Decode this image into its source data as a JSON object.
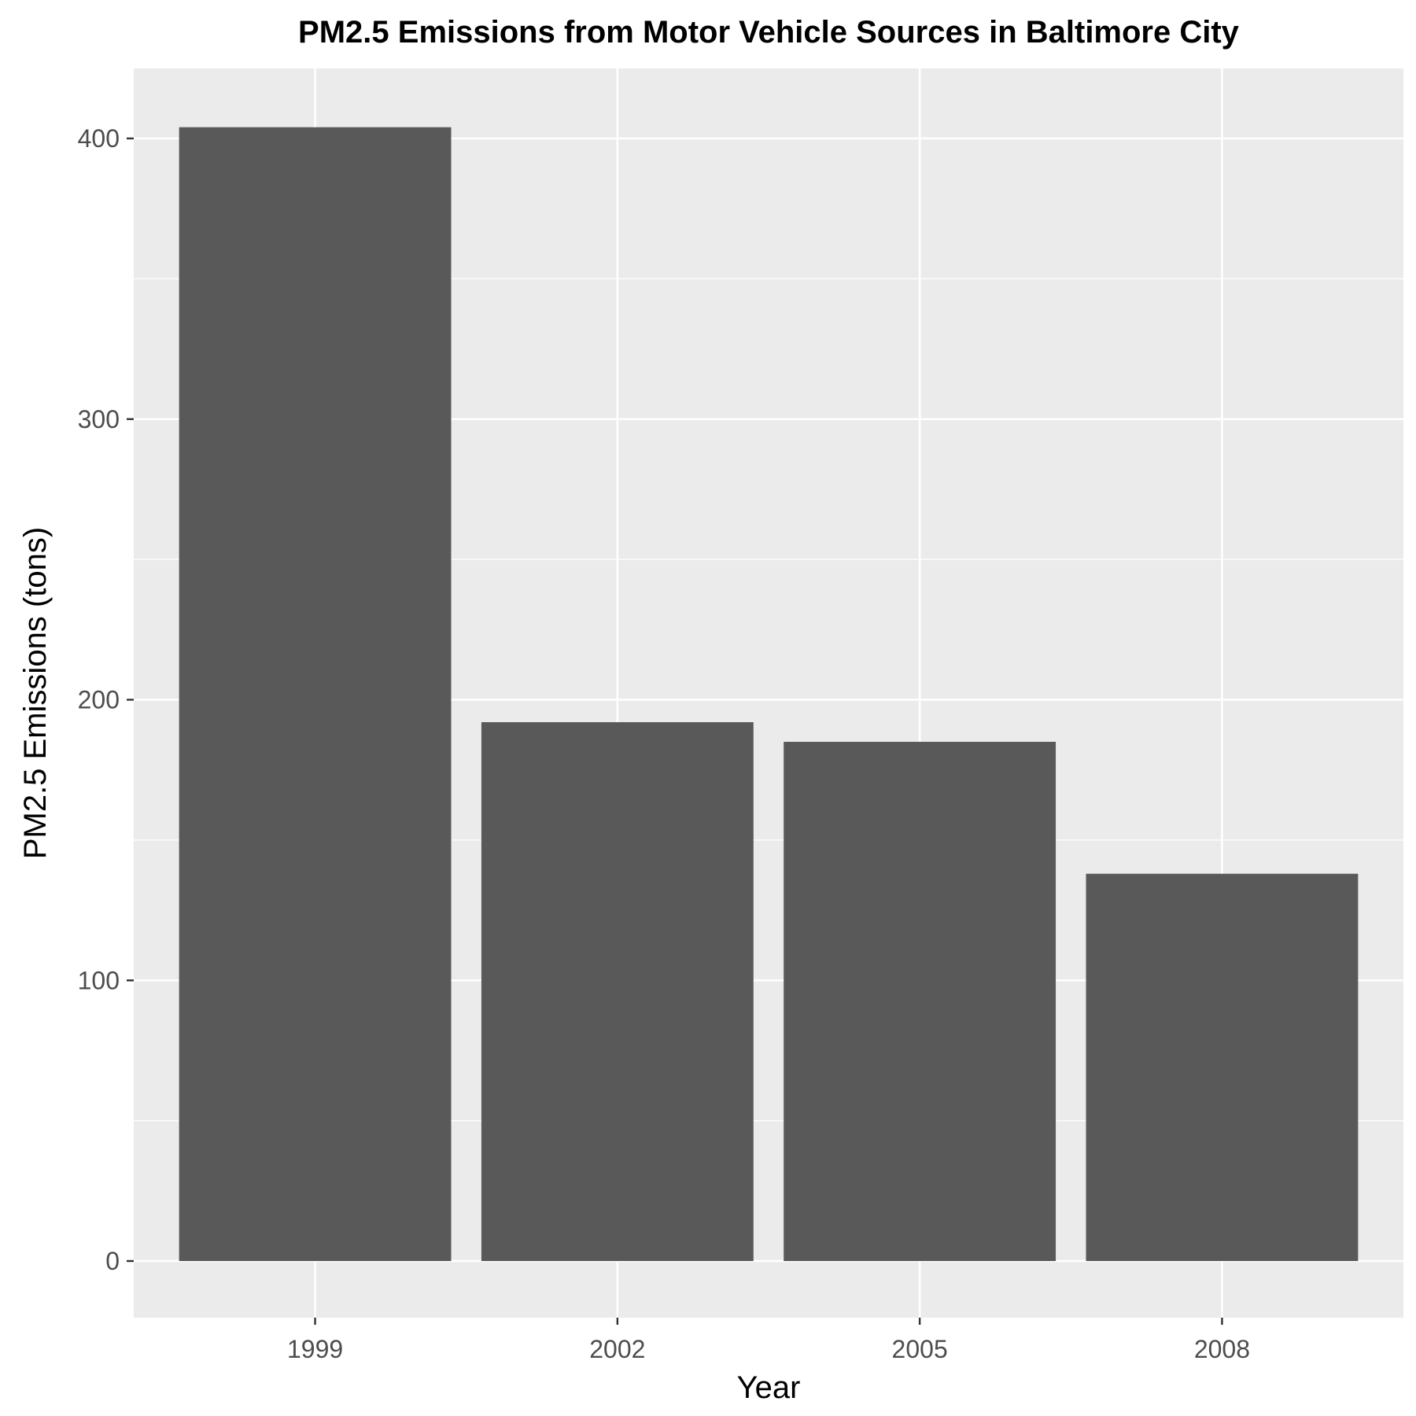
{
  "chart_data": {
    "type": "bar",
    "title": "PM2.5 Emissions from Motor Vehicle Sources in Baltimore City",
    "xlabel": "Year",
    "ylabel": "PM2.5 Emissions (tons)",
    "categories": [
      "1999",
      "2002",
      "2005",
      "2008"
    ],
    "values": [
      404,
      192,
      185,
      138
    ],
    "ylim": [
      -20,
      425
    ],
    "yticks": [
      0,
      100,
      200,
      300,
      400
    ],
    "grid": true,
    "legend": "none",
    "colors": {
      "panel": "#ebebeb",
      "bar": "#595959",
      "grid": "#ffffff",
      "tick_text": "#4d4d4d",
      "text": "#000000"
    }
  }
}
